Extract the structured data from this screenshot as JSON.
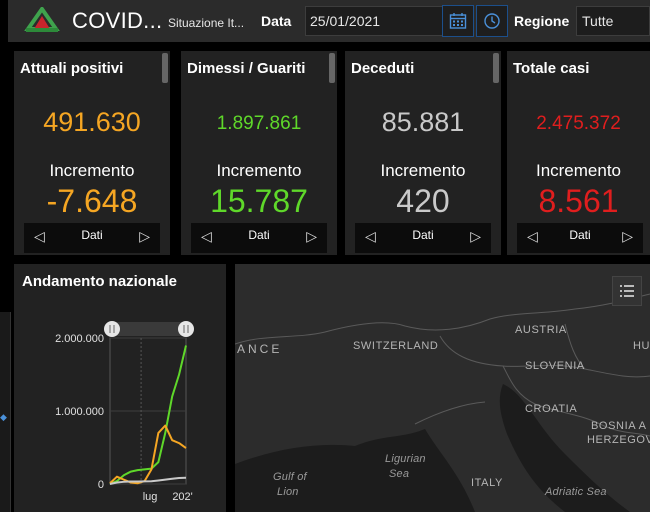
{
  "header": {
    "title": "COVID...",
    "subtitle": "Situazione It...",
    "date_label": "Data",
    "date_value": "25/01/2021",
    "region_label": "Regione",
    "region_value": "Tutte"
  },
  "cards": [
    {
      "title": "Attuali positivi",
      "value": "491.630",
      "inc_label": "Incremento",
      "inc_value": "-7.648",
      "nav_label": "Dati",
      "color": "#f5a623"
    },
    {
      "title": "Dimessi / Guariti",
      "value": "1.897.861",
      "inc_label": "Incremento",
      "inc_value": "15.787",
      "nav_label": "Dati",
      "color": "#5fd82a"
    },
    {
      "title": "Deceduti",
      "value": "85.881",
      "inc_label": "Incremento",
      "inc_value": "420",
      "nav_label": "Dati",
      "color": "#c9c9c9"
    },
    {
      "title": "Totale casi",
      "value": "2.475.372",
      "inc_label": "Incremento",
      "inc_value": "8.561",
      "nav_label": "Dati",
      "color": "#e01e1e"
    }
  ],
  "trend": {
    "title": "Andamento nazionale",
    "chart_data": {
      "type": "line",
      "title": "",
      "xlabel": "",
      "ylabel": "",
      "x_tick_labels": [
        "lug",
        "202'"
      ],
      "y_tick_labels": [
        "2.000.000",
        "1.000.000",
        "0"
      ],
      "ylim": [
        0,
        2000000
      ],
      "grid": true,
      "x": [
        0,
        1,
        2,
        3,
        4,
        5,
        6,
        7,
        8,
        9,
        10,
        11
      ],
      "series": [
        {
          "color": "#5fd82a",
          "values": [
            0,
            40000,
            120000,
            170000,
            190000,
            200000,
            210000,
            300000,
            700000,
            1200000,
            1500000,
            1897861
          ]
        },
        {
          "color": "#f5a623",
          "values": [
            10000,
            100000,
            60000,
            20000,
            10000,
            40000,
            200000,
            700000,
            800000,
            600000,
            560000,
            491630
          ]
        },
        {
          "color": "#c9c9c9",
          "values": [
            0,
            20000,
            30000,
            34000,
            35000,
            35500,
            38000,
            48000,
            60000,
            72000,
            82000,
            85881
          ]
        }
      ]
    }
  },
  "map": {
    "labels": {
      "france": "ANCE",
      "switzerland": "SWITZERLAND",
      "austria": "AUSTRIA",
      "slovenia": "SLOVENIA",
      "croatia": "CROATIA",
      "bosnia_1": "BOSNIA A",
      "bosnia_2": "HERZEGOV",
      "hungary": "HU",
      "italy": "ITALY",
      "gulf_1": "Gulf of",
      "gulf_2": "Lion",
      "ligurian_1": "Ligurian",
      "ligurian_2": "Sea",
      "adriatic": "Adriatic Sea"
    }
  }
}
